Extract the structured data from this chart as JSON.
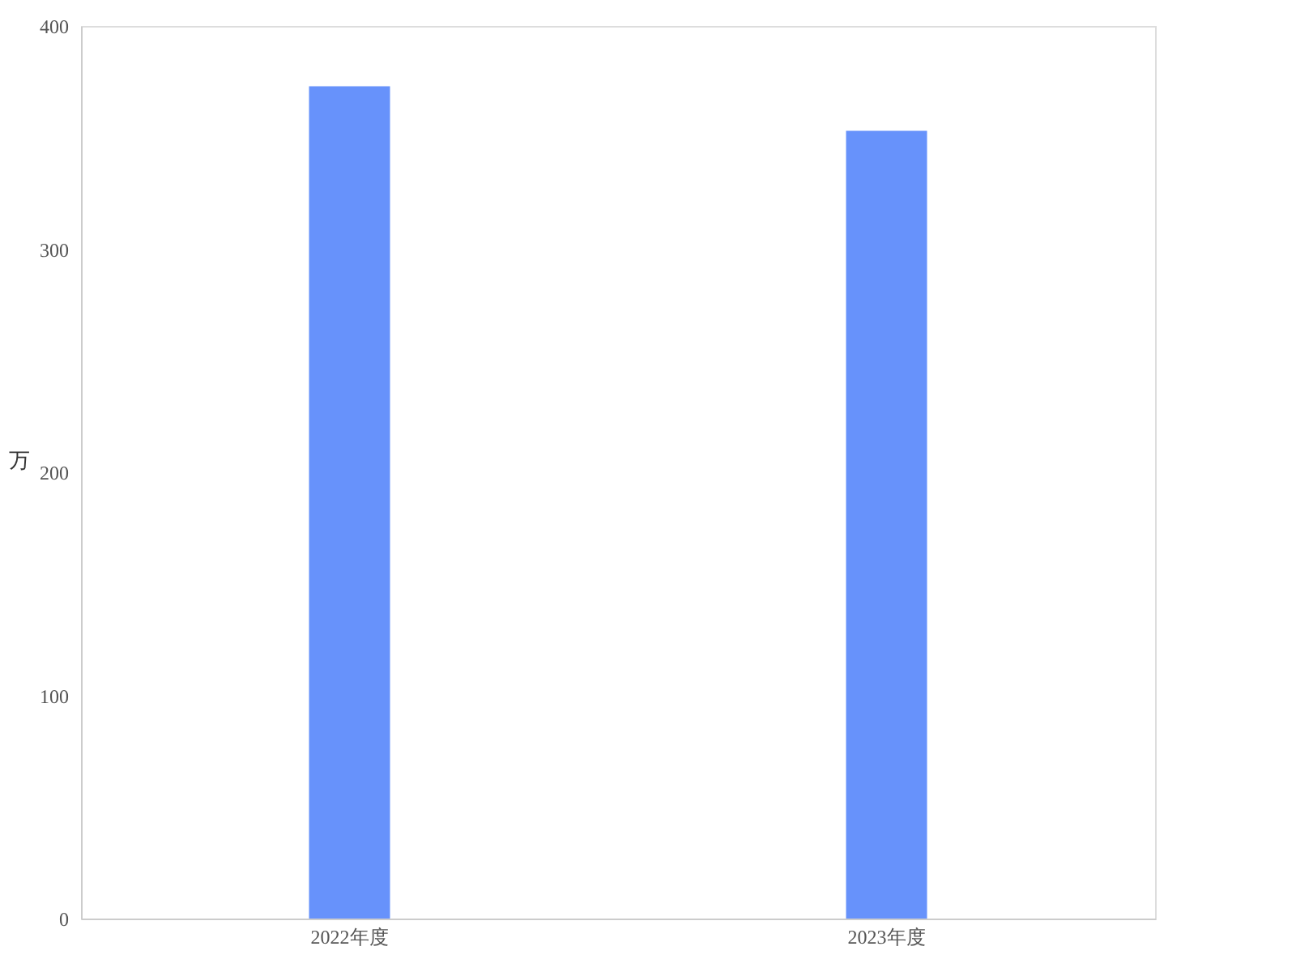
{
  "chart_data": {
    "type": "bar",
    "categories": [
      "2022年度",
      "2023年度"
    ],
    "values": [
      373,
      353
    ],
    "color": "#6792fb",
    "ylabel": "万",
    "ylim": [
      0,
      400
    ],
    "yticks": [
      0,
      100,
      200,
      300,
      400
    ],
    "grid": false
  }
}
